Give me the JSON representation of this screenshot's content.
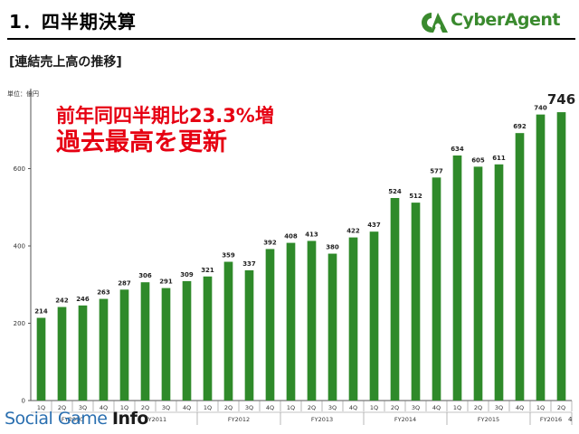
{
  "header": {
    "title": "1．四半期決算",
    "subtitle": "[連結売上高の推移]",
    "logo_text": "CyberAgent",
    "logo_icon": "cyberagent-logo-mark",
    "page_number": "4"
  },
  "headline": {
    "line1": "前年同四半期比23.3%増",
    "line2": "過去最高を更新"
  },
  "watermark": {
    "text": "Social Game ",
    "emphasis": "Info"
  },
  "colors": {
    "bar": "#2f8a2a",
    "headline": "#e60012",
    "logo_green": "#3a8a2e"
  },
  "chart_data": {
    "type": "bar",
    "unit_label": "単位：億円",
    "ylim": [
      0,
      800
    ],
    "yticks": [
      0,
      200,
      400,
      600
    ],
    "grid": false,
    "quarters": [
      "1Q",
      "2Q",
      "3Q",
      "4Q",
      "1Q",
      "2Q",
      "3Q",
      "4Q",
      "1Q",
      "2Q",
      "3Q",
      "4Q",
      "1Q",
      "2Q",
      "3Q",
      "4Q",
      "1Q",
      "2Q",
      "3Q",
      "4Q",
      "1Q",
      "2Q",
      "3Q",
      "4Q",
      "1Q",
      "2Q"
    ],
    "values": [
      214,
      242,
      246,
      263,
      287,
      306,
      291,
      309,
      321,
      359,
      337,
      392,
      408,
      413,
      380,
      422,
      437,
      524,
      512,
      577,
      634,
      605,
      611,
      692,
      740,
      746
    ],
    "value_labels": [
      "214",
      "242",
      "246",
      "263",
      "287",
      "306",
      "291",
      "309",
      "321",
      "359",
      "337",
      "392",
      "408",
      "413",
      "380",
      "422",
      "437",
      "524",
      "512",
      "577",
      "634",
      "605",
      "611",
      "692",
      "740",
      "746"
    ],
    "fiscal_years": [
      {
        "label": "FY2010",
        "count": 4
      },
      {
        "label": "FY2011",
        "count": 4
      },
      {
        "label": "FY2012",
        "count": 4
      },
      {
        "label": "FY2013",
        "count": 4
      },
      {
        "label": "FY2014",
        "count": 4
      },
      {
        "label": "FY2015",
        "count": 4
      },
      {
        "label": "FY2016",
        "count": 2
      }
    ]
  }
}
